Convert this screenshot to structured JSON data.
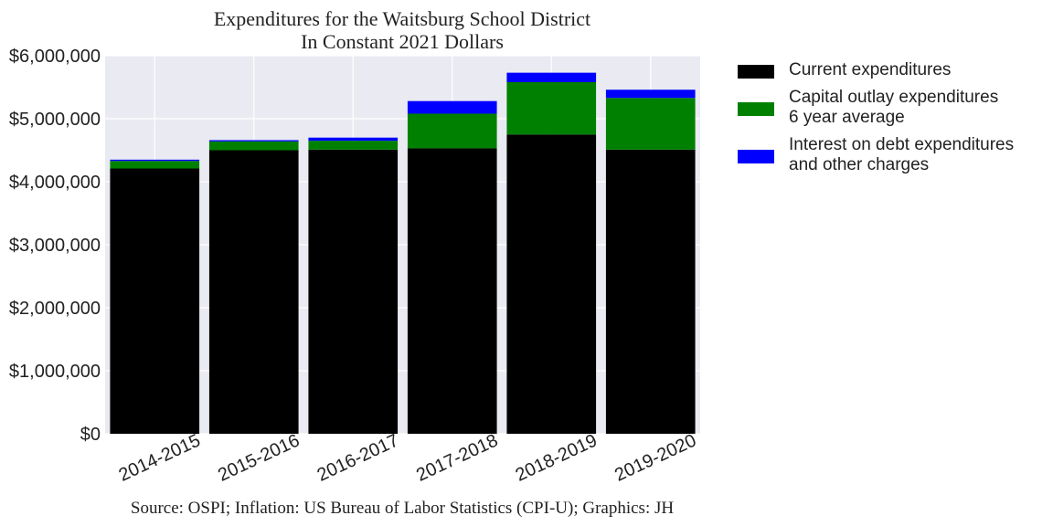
{
  "chart_data": {
    "type": "bar",
    "stacked": true,
    "title": "Expenditures for the Waitsburg School District",
    "subtitle": "In Constant 2021 Dollars",
    "source": "Source: OSPI; Inflation: US Bureau of Labor Statistics (CPI-U); Graphics: JH",
    "xlabel": "",
    "ylabel": "",
    "ylim": [
      0,
      6000000
    ],
    "yticks": [
      0,
      1000000,
      2000000,
      3000000,
      4000000,
      5000000,
      6000000
    ],
    "ytick_labels": [
      "$0",
      "$1,000,000",
      "$2,000,000",
      "$3,000,000",
      "$4,000,000",
      "$5,000,000",
      "$6,000,000"
    ],
    "grid": true,
    "legend_position": "outside-right",
    "categories": [
      "2014-2015",
      "2015-2016",
      "2016-2017",
      "2017-2018",
      "2018-2019",
      "2019-2020"
    ],
    "series": [
      {
        "name": "Current expenditures",
        "color": "#000000",
        "values": [
          4210000,
          4500000,
          4510000,
          4530000,
          4750000,
          4510000
        ]
      },
      {
        "name": "Capital outlay expenditures\n6 year average",
        "color": "#008000",
        "values": [
          120000,
          140000,
          140000,
          550000,
          830000,
          820000
        ]
      },
      {
        "name": "Interest on debt expenditures\nand other charges",
        "color": "#0000ff",
        "values": [
          20000,
          20000,
          50000,
          200000,
          150000,
          130000
        ]
      }
    ]
  }
}
